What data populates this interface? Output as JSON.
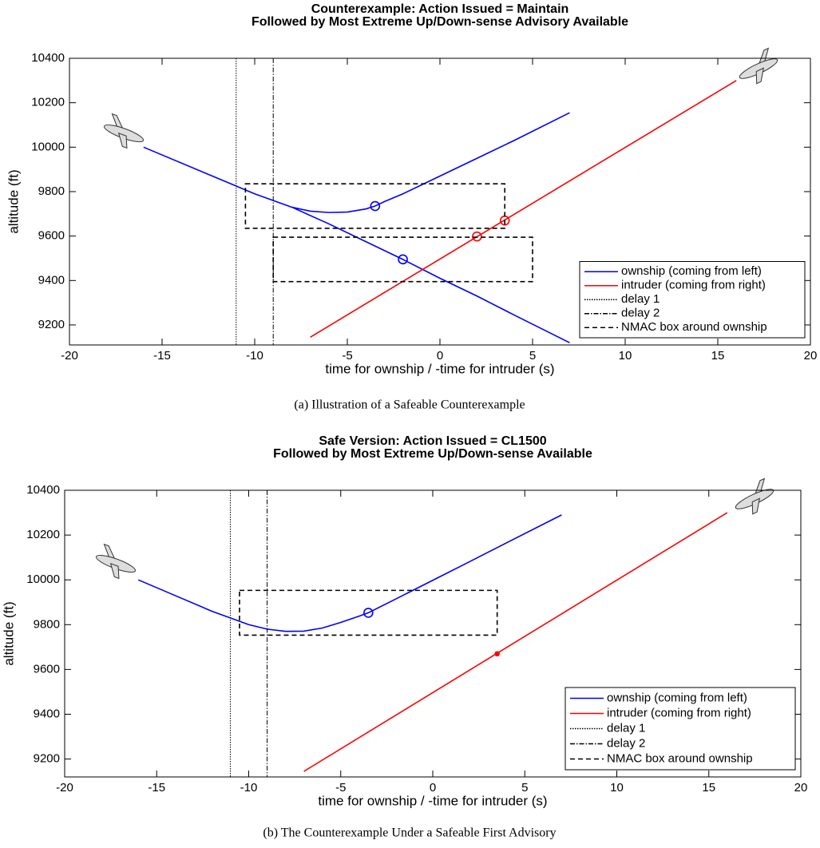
{
  "chart_data": [
    {
      "type": "line",
      "title": [
        "Counterexample: Action Issued = Maintain",
        "Followed by Most Extreme Up/Down-sense Advisory Available"
      ],
      "xlabel": "time for ownship / -time for intruder (s)",
      "ylabel": "altitude (ft)",
      "xlim": [
        -20,
        20
      ],
      "ylim": [
        9110,
        10400
      ],
      "xticks": [
        -20,
        -15,
        -10,
        -5,
        0,
        5,
        10,
        15,
        20
      ],
      "yticks": [
        9200,
        9400,
        9600,
        9800,
        10000,
        10200,
        10400
      ],
      "legend": "lower right",
      "series": [
        {
          "name": "ownship (coming from left)",
          "color": "#0000ff",
          "style": "solid",
          "x": [
            -16,
            -12,
            -10,
            -8,
            -7,
            -6,
            -5,
            -4,
            -3.5,
            -3,
            -2,
            0,
            2,
            4,
            7,
            null,
            -8,
            -6,
            -4,
            -2,
            0,
            2,
            4,
            7
          ],
          "values": [
            10000,
            9860,
            9790,
            9730,
            9712,
            9706,
            9708,
            9722,
            9735,
            9755,
            9790,
            9870,
            9950,
            10030,
            10155,
            null,
            9730,
            9655,
            9575,
            9495,
            9410,
            9330,
            9245,
            9120
          ],
          "markers": {
            "x": [
              -3.5,
              -2
            ],
            "values": [
              9735,
              9495
            ],
            "filled": false
          }
        },
        {
          "name": "intruder (coming from right)",
          "color": "#ff0000",
          "style": "solid",
          "x": [
            -7,
            16
          ],
          "values": [
            9145,
            10300
          ],
          "markers": {
            "x": [
              2,
              3.5
            ],
            "values": [
              9598,
              9670
            ],
            "filled": false
          }
        },
        {
          "name": "delay 1",
          "color": "#000000",
          "style": "dotted",
          "xline": -11
        },
        {
          "name": "delay 2",
          "color": "#000000",
          "style": "dashdot",
          "xline": -9
        },
        {
          "name": "NMAC box around ownship",
          "color": "#000000",
          "style": "dashed",
          "boxes": [
            {
              "x": [
                -10.5,
                3.5
              ],
              "y": [
                9635,
                9835
              ]
            },
            {
              "x": [
                -9,
                5
              ],
              "y": [
                9395,
                9595
              ]
            }
          ]
        }
      ],
      "caption": "(a) Illustration of a Safeable Counterexample"
    },
    {
      "type": "line",
      "title": [
        "Safe Version: Action Issued = CL1500",
        "Followed by Most Extreme Up/Down-sense Available"
      ],
      "xlabel": "time for ownship / -time for intruder (s)",
      "ylabel": "altitude (ft)",
      "xlim": [
        -20,
        20
      ],
      "ylim": [
        9120,
        10400
      ],
      "xticks": [
        -20,
        -15,
        -10,
        -5,
        0,
        5,
        10,
        15,
        20
      ],
      "yticks": [
        9200,
        9400,
        9600,
        9800,
        10000,
        10200,
        10400
      ],
      "legend": "lower right",
      "series": [
        {
          "name": "ownship (coming from left)",
          "color": "#0000ff",
          "style": "solid",
          "x": [
            -16,
            -14,
            -12,
            -10,
            -9,
            -8,
            -7,
            -6,
            -5,
            -4,
            -3.5,
            -2,
            0,
            2,
            4,
            7
          ],
          "values": [
            10000,
            9930,
            9860,
            9800,
            9780,
            9770,
            9771,
            9785,
            9810,
            9838,
            9853,
            9915,
            9998,
            10081,
            10165,
            10290
          ],
          "markers": {
            "x": [
              -3.5
            ],
            "values": [
              9853
            ],
            "filled": false
          }
        },
        {
          "name": "intruder (coming from right)",
          "color": "#ff0000",
          "style": "solid",
          "x": [
            -7,
            16
          ],
          "values": [
            9145,
            10300
          ],
          "markers": {
            "x": [
              3.5
            ],
            "values": [
              9670
            ],
            "filled": true
          }
        },
        {
          "name": "delay 1",
          "color": "#000000",
          "style": "dotted",
          "xline": -11
        },
        {
          "name": "delay 2",
          "color": "#000000",
          "style": "dashdot",
          "xline": -9
        },
        {
          "name": "NMAC box around ownship",
          "color": "#000000",
          "style": "dashed",
          "boxes": [
            {
              "x": [
                -10.5,
                3.5
              ],
              "y": [
                9753,
                9953
              ]
            }
          ]
        }
      ],
      "caption": "(b) The Counterexample Under a Safeable First Advisory"
    }
  ]
}
